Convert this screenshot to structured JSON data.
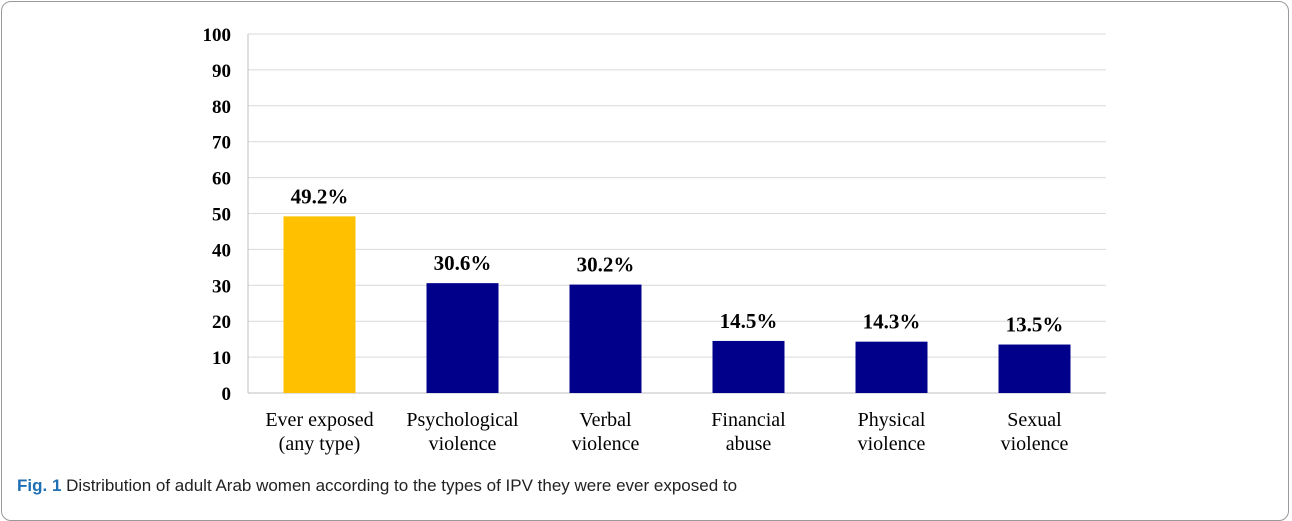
{
  "chart_data": {
    "type": "bar",
    "categories": [
      [
        "Ever exposed",
        "(any type)"
      ],
      [
        "Psychological",
        "violence"
      ],
      [
        "Verbal",
        "violence"
      ],
      [
        "Financial",
        "abuse"
      ],
      [
        "Physical",
        "violence"
      ],
      [
        "Sexual",
        "violence"
      ]
    ],
    "values": [
      49.2,
      30.6,
      30.2,
      14.5,
      14.3,
      13.5
    ],
    "data_labels": [
      "49.2%",
      "30.6%",
      "30.2%",
      "14.5%",
      "14.3%",
      "13.5%"
    ],
    "bar_colors": [
      "#FFC000",
      "#00008B",
      "#00008B",
      "#00008B",
      "#00008B",
      "#00008B"
    ],
    "ylim": [
      0,
      100
    ],
    "yticks": [
      0,
      10,
      20,
      30,
      40,
      50,
      60,
      70,
      80,
      90,
      100
    ],
    "grid": true,
    "gridline_color": "#d9d9d9",
    "title": "",
    "xlabel": "",
    "ylabel": ""
  },
  "caption": {
    "label": "Fig. 1",
    "text": "Distribution of adult Arab women according to the types of IPV they were ever exposed to"
  }
}
